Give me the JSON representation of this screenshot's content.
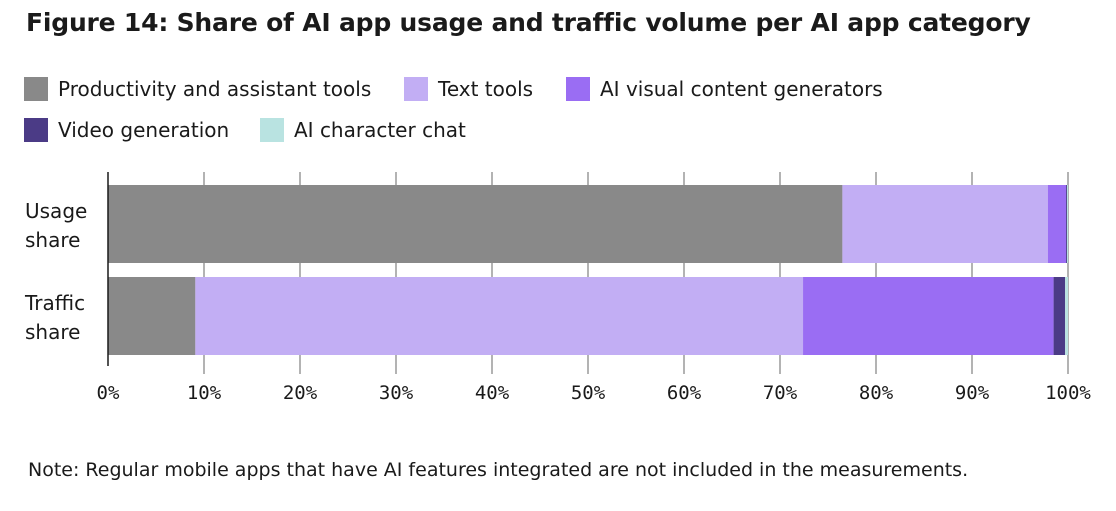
{
  "title": "Figure 14: Share of AI app usage and traffic volume per AI app category",
  "note": "Note: Regular mobile apps that have AI features integrated are not included in the measurements.",
  "colors": {
    "productivity": "#898989",
    "text_tools": "#c2aef4",
    "visual": "#9a6df3",
    "video": "#4b3b86",
    "character": "#b9e3e1",
    "grid": "#9a9a9a",
    "axis": "#1a1a1a"
  },
  "legend": [
    {
      "label": "Productivity and assistant tools",
      "color": "#898989"
    },
    {
      "label": "Text tools",
      "color": "#c2aef4"
    },
    {
      "label": "AI visual content generators",
      "color": "#9a6df3"
    },
    {
      "label": "Video generation",
      "color": "#4b3b86"
    },
    {
      "label": "AI character chat",
      "color": "#b9e3e1"
    }
  ],
  "chart_data": {
    "type": "bar",
    "orientation": "horizontal",
    "stacked": true,
    "categories": [
      [
        "Usage",
        "share"
      ],
      [
        "Traffic",
        "share"
      ]
    ],
    "series": [
      {
        "name": "Productivity and assistant tools",
        "color": "#898989",
        "values": [
          76.5,
          9.1
        ]
      },
      {
        "name": "Text tools",
        "color": "#c2aef4",
        "values": [
          21.4,
          63.3
        ]
      },
      {
        "name": "AI visual content generators",
        "color": "#9a6df3",
        "values": [
          1.9,
          26.1
        ]
      },
      {
        "name": "Video generation",
        "color": "#4b3b86",
        "values": [
          0.1,
          1.2
        ]
      },
      {
        "name": "AI character chat",
        "color": "#b9e3e1",
        "values": [
          0.1,
          0.3
        ]
      }
    ],
    "xlim": [
      0,
      100
    ],
    "xticks": [
      "0%",
      "10%",
      "20%",
      "30%",
      "40%",
      "50%",
      "60%",
      "70%",
      "80%",
      "90%",
      "100%"
    ],
    "grid": "vertical",
    "legend_position": "top"
  }
}
